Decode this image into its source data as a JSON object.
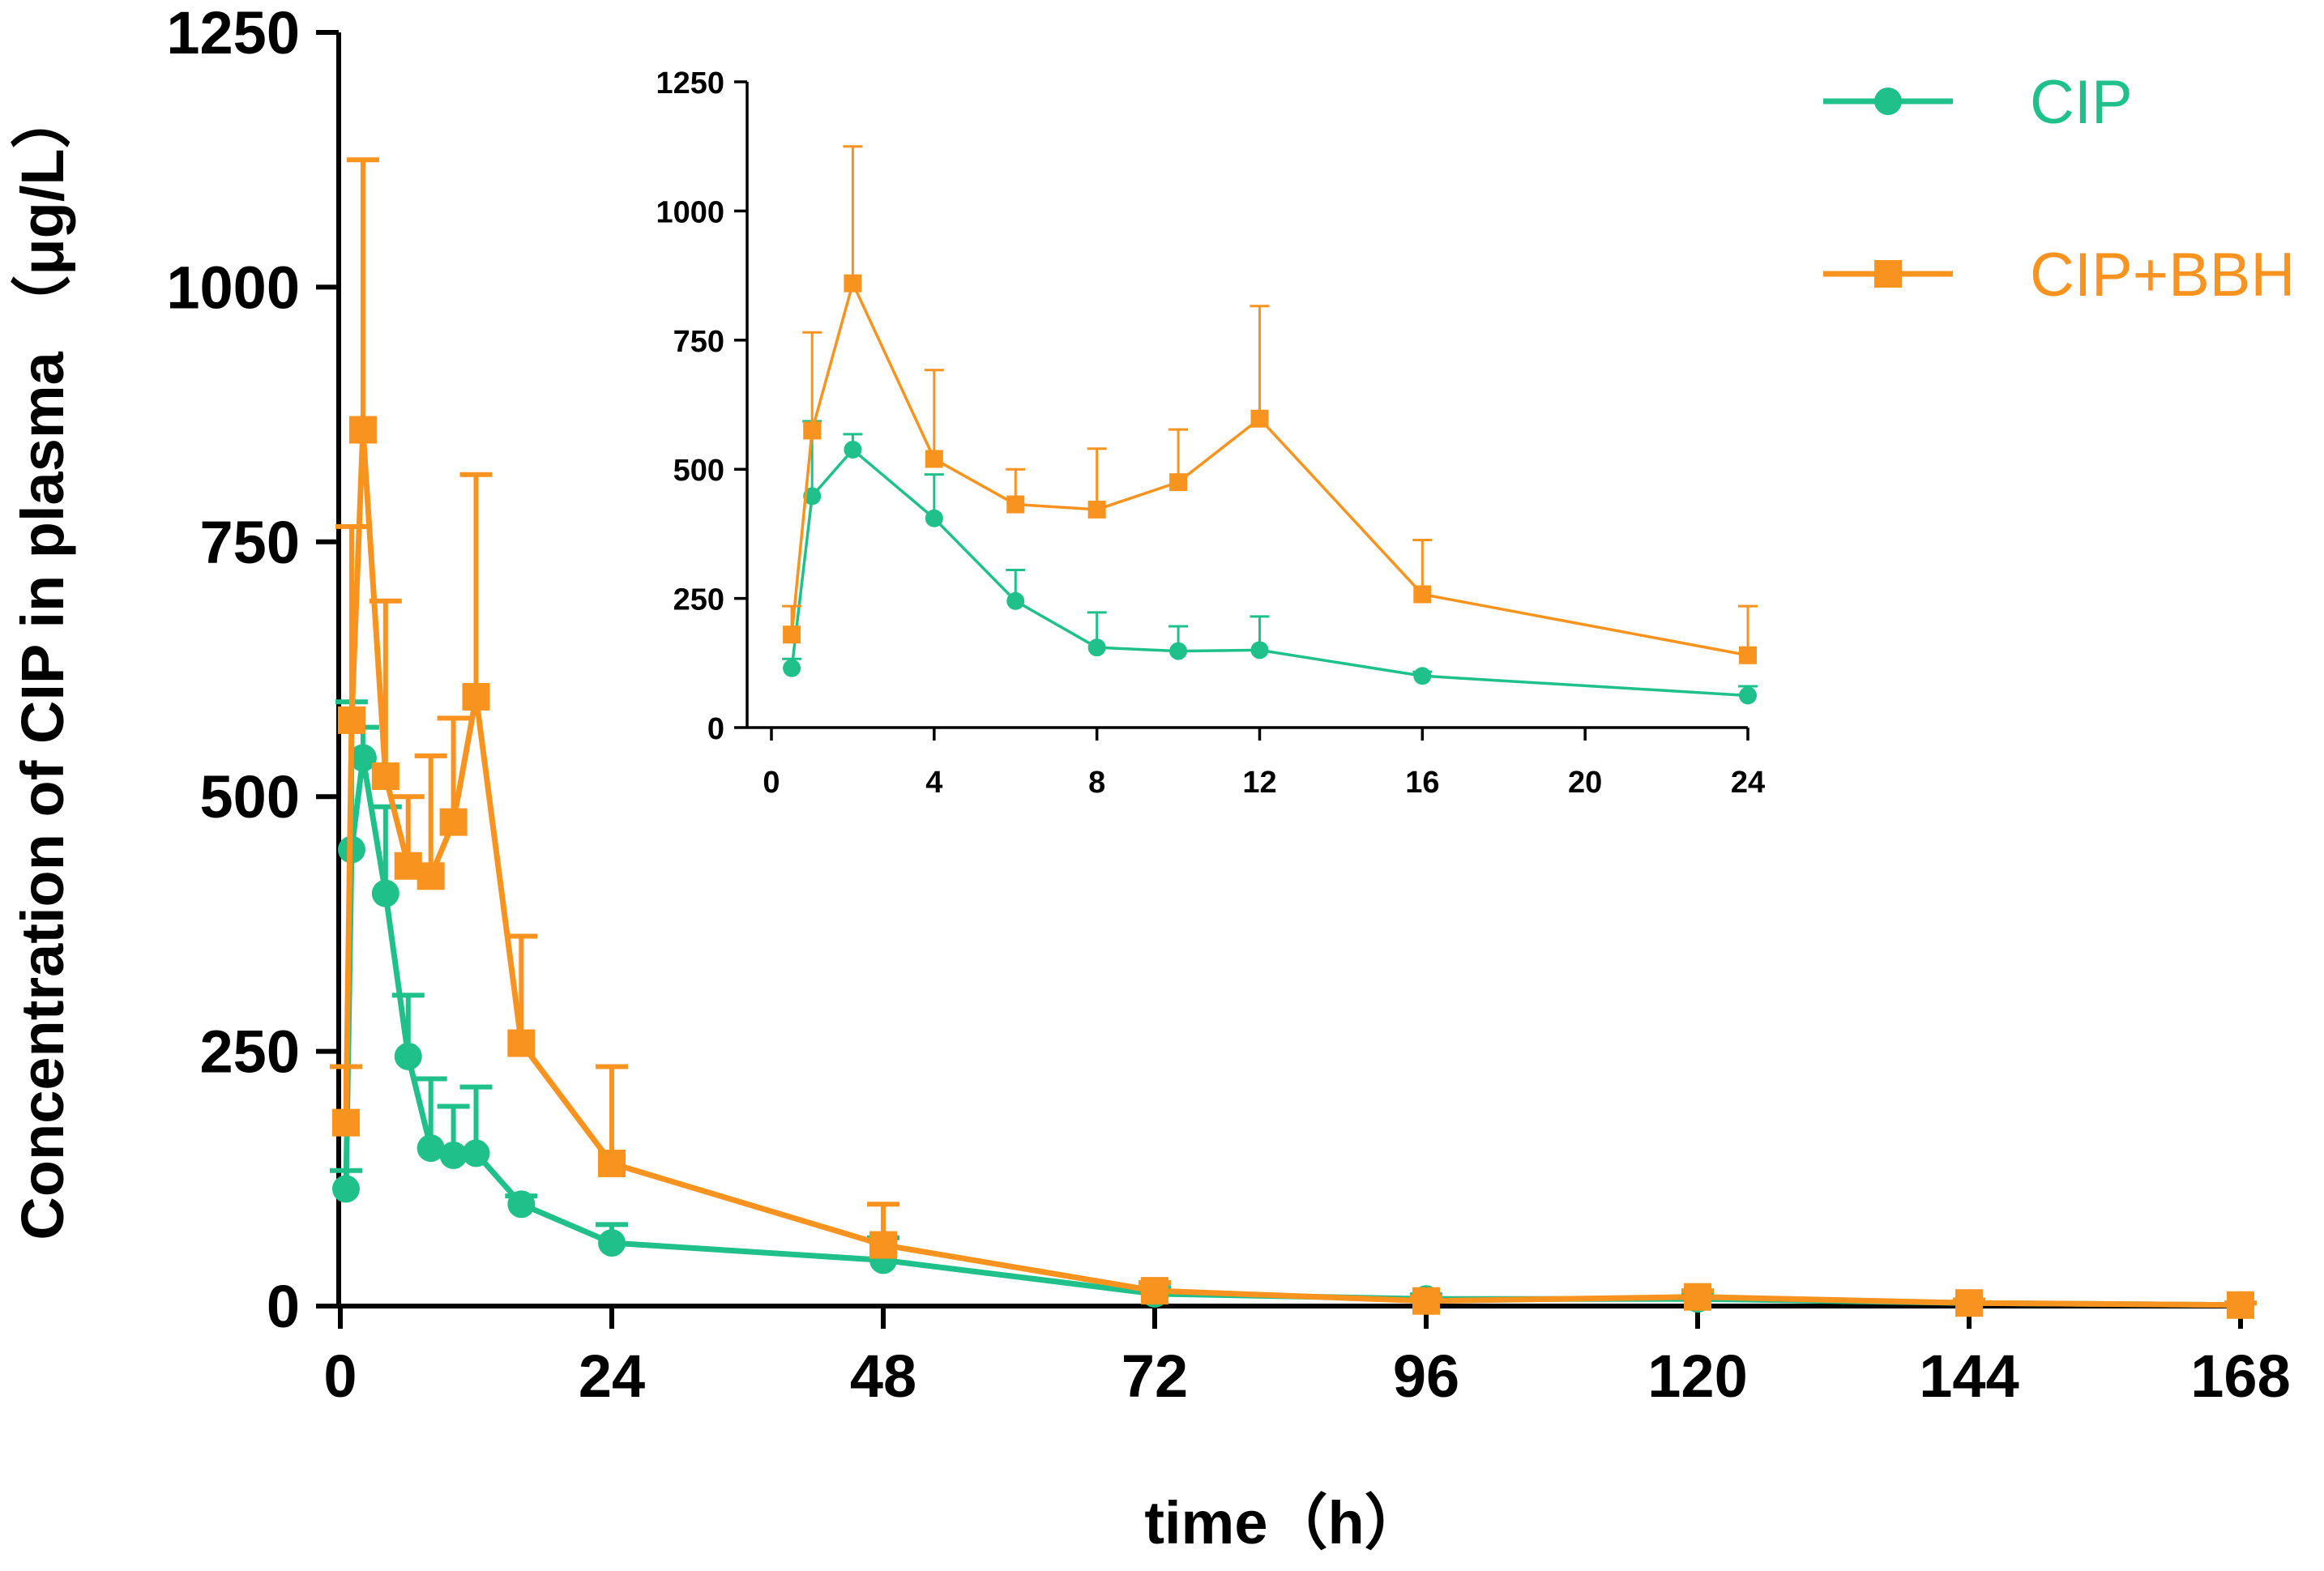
{
  "chart_data": [
    {
      "type": "line",
      "role": "main",
      "title": "",
      "xlabel": "time（h）",
      "ylabel": "Concentration of CIP in plasma （μg/L）",
      "xlim": [
        0,
        168
      ],
      "ylim": [
        0,
        1250
      ],
      "xticks": [
        "0",
        "24",
        "48",
        "72",
        "96",
        "120",
        "144",
        "168"
      ],
      "yticks": [
        "0",
        "250",
        "500",
        "750",
        "1000",
        "1250"
      ],
      "x": [
        0.5,
        1,
        2,
        4,
        6,
        8,
        10,
        12,
        16,
        24,
        48,
        72,
        96,
        120,
        144,
        168
      ],
      "series": [
        {
          "name": "CIP",
          "color": "#1fc08a",
          "marker": "circle",
          "values": [
            115,
            448,
            538,
            405,
            245,
            155,
            148,
            150,
            100,
            62,
            45,
            12,
            7,
            7,
            3,
            1
          ],
          "errors": [
            18,
            145,
            30,
            85,
            60,
            68,
            48,
            65,
            8,
            18,
            22,
            6,
            4,
            4,
            3,
            2
          ]
        },
        {
          "name": "CIP+BBH",
          "color": "#f7931e",
          "marker": "square",
          "values": [
            180,
            575,
            860,
            520,
            432,
            422,
            475,
            598,
            258,
            140,
            60,
            15,
            5,
            9,
            3,
            1
          ],
          "errors": [
            55,
            190,
            265,
            172,
            68,
            118,
            102,
            218,
            105,
            95,
            40,
            8,
            4,
            6,
            3,
            2
          ]
        }
      ]
    },
    {
      "type": "line",
      "role": "inset",
      "title": "",
      "xlabel": "",
      "ylabel": "",
      "xlim": [
        0,
        24
      ],
      "ylim": [
        0,
        1250
      ],
      "xticks": [
        "0",
        "4",
        "8",
        "12",
        "16",
        "20",
        "24"
      ],
      "yticks": [
        "0",
        "250",
        "500",
        "750",
        "1000",
        "1250"
      ],
      "x": [
        0.5,
        1,
        2,
        4,
        6,
        8,
        10,
        12,
        16,
        24
      ],
      "series": [
        {
          "name": "CIP",
          "color": "#1fc08a",
          "marker": "circle",
          "values": [
            115,
            448,
            538,
            405,
            245,
            155,
            148,
            150,
            100,
            62
          ],
          "errors": [
            18,
            145,
            30,
            85,
            60,
            68,
            48,
            65,
            8,
            18
          ]
        },
        {
          "name": "CIP+BBH",
          "color": "#f7931e",
          "marker": "square",
          "values": [
            180,
            575,
            860,
            520,
            432,
            422,
            475,
            598,
            258,
            140
          ],
          "errors": [
            55,
            190,
            265,
            172,
            68,
            118,
            102,
            218,
            105,
            95
          ]
        }
      ]
    }
  ],
  "legend": {
    "placement": "top-right",
    "items": [
      {
        "label": "CIP",
        "color": "#1fc08a",
        "marker": "circle"
      },
      {
        "label": "CIP+BBH",
        "color": "#f7931e",
        "marker": "square"
      }
    ]
  }
}
